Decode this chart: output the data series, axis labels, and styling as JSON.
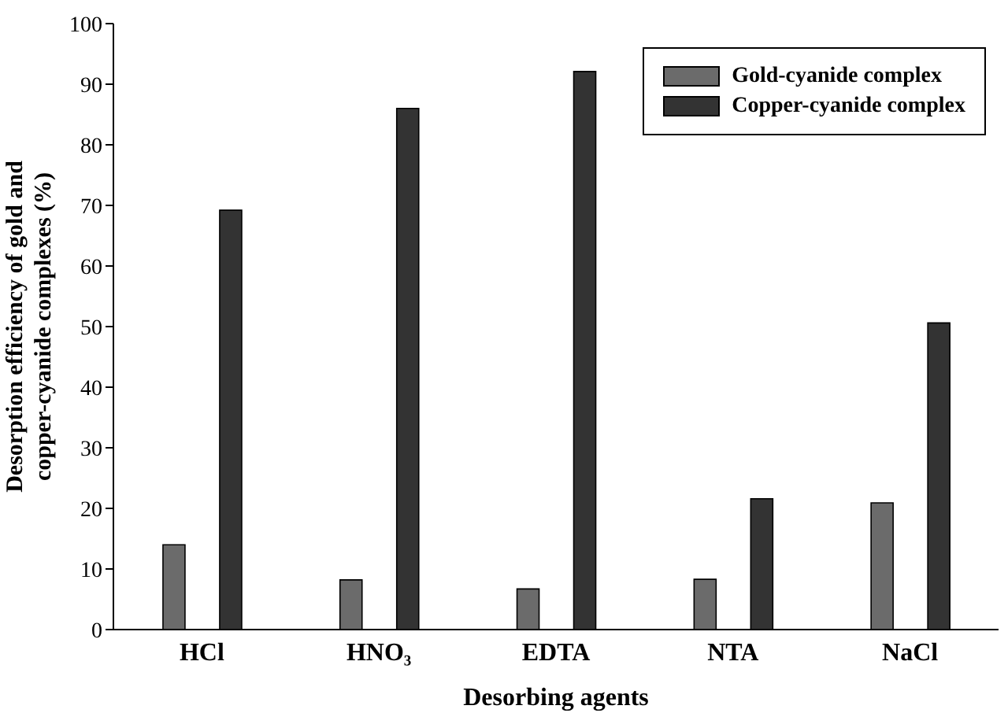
{
  "chart_data": {
    "type": "bar",
    "xlabel": "Desorbing agents",
    "ylabel": "Desorption efficiency of gold and copper-cyanide complexes (%)",
    "categories": [
      "HCl",
      "HNO₃",
      "EDTA",
      "NTA",
      "NaCl"
    ],
    "series": [
      {
        "name": "Gold-cyanide complex",
        "color": "#6b6b6b",
        "values": [
          14,
          8.2,
          6.7,
          8.3,
          20.9
        ]
      },
      {
        "name": "Copper-cyanide complex",
        "color": "#333333",
        "values": [
          69.2,
          86,
          92.1,
          21.6,
          50.6
        ]
      }
    ],
    "ylim": [
      0,
      100
    ],
    "yticks": [
      0,
      10,
      20,
      30,
      40,
      50,
      60,
      70,
      80,
      90,
      100
    ],
    "grid": false,
    "legend": "top right"
  }
}
